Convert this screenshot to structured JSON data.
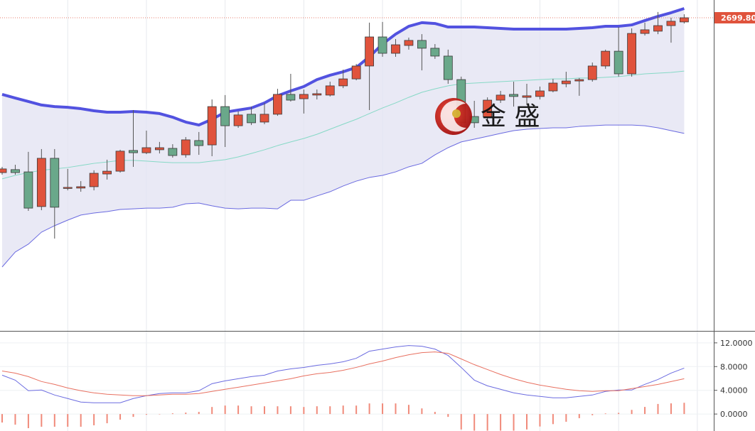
{
  "chart_data": [
    {
      "type": "candlestick",
      "categories": [
        null,
        null,
        null,
        null,
        null,
        null,
        null,
        null,
        null,
        null,
        null,
        null,
        null,
        null,
        null,
        null,
        null,
        null,
        null,
        null,
        null,
        null,
        null,
        null,
        null,
        null,
        null,
        null,
        null,
        null,
        null,
        null,
        null,
        null,
        null,
        null,
        null,
        null,
        null,
        null,
        null,
        null,
        null,
        null,
        null,
        null,
        null,
        null,
        null,
        null,
        null,
        null,
        null
      ],
      "open": [
        2610.9,
        2612.6,
        2611.3,
        2591.4,
        2619.1,
        2602.0,
        2602.0,
        2602.8,
        2610.1,
        2611.7,
        2623.6,
        2622.3,
        2624.0,
        2624.8,
        2621.1,
        2629.3,
        2626.8,
        2648.8,
        2637.8,
        2644.4,
        2639.9,
        2644.4,
        2655.8,
        2653.3,
        2655.4,
        2655.4,
        2660.7,
        2664.7,
        2672.1,
        2688.8,
        2679.4,
        2683.9,
        2686.8,
        2682.3,
        2677.8,
        2664.3,
        2643.1,
        2642.7,
        2652.5,
        2655.8,
        2654.1,
        2654.6,
        2657.8,
        2661.9,
        2663.5,
        2664.3,
        2672.1,
        2680.6,
        2667.6,
        2690.8,
        2692.1,
        2695.3,
        2697.4
      ],
      "high": [
        2614.2,
        2615.4,
        2622.8,
        2624.4,
        2624.4,
        2613.0,
        2606.0,
        2612.2,
        2618.3,
        2624.0,
        2646.8,
        2635.0,
        2628.5,
        2627.2,
        2631.3,
        2634.2,
        2652.9,
        2655.4,
        2646.0,
        2648.8,
        2650.9,
        2659.0,
        2667.6,
        2658.6,
        2658.6,
        2663.1,
        2670.0,
        2673.3,
        2697.0,
        2697.4,
        2687.6,
        2688.4,
        2690.4,
        2684.7,
        2681.5,
        2666.0,
        2652.1,
        2654.1,
        2657.8,
        2663.1,
        2661.9,
        2660.3,
        2664.7,
        2668.8,
        2665.2,
        2674.1,
        2681.5,
        2694.5,
        2693.7,
        2697.0,
        2703.1,
        2699.8,
        2701.8
      ],
      "low": [
        2609.7,
        2609.7,
        2588.9,
        2589.3,
        2573.0,
        2600.7,
        2599.9,
        2600.7,
        2606.9,
        2610.9,
        2614.2,
        2621.5,
        2621.9,
        2619.5,
        2619.5,
        2621.1,
        2620.3,
        2625.6,
        2636.6,
        2638.2,
        2638.7,
        2643.5,
        2651.7,
        2644.8,
        2652.9,
        2654.6,
        2659.4,
        2663.9,
        2646.8,
        2677.4,
        2677.4,
        2681.5,
        2669.6,
        2676.2,
        2661.9,
        2637.4,
        2636.6,
        2640.7,
        2650.9,
        2648.8,
        2649.7,
        2652.9,
        2657.0,
        2659.9,
        2655.0,
        2663.1,
        2670.5,
        2666.0,
        2666.0,
        2689.6,
        2690.4,
        2685.5,
        2696.5
      ],
      "close": [
        2613.0,
        2610.9,
        2590.5,
        2619.1,
        2591.0,
        2602.4,
        2602.8,
        2610.5,
        2611.7,
        2623.2,
        2622.3,
        2625.2,
        2625.2,
        2620.7,
        2629.7,
        2626.4,
        2648.8,
        2637.8,
        2644.0,
        2639.5,
        2644.4,
        2655.8,
        2652.5,
        2655.8,
        2656.2,
        2660.7,
        2664.7,
        2672.1,
        2688.8,
        2679.4,
        2684.3,
        2686.8,
        2682.3,
        2677.8,
        2664.3,
        2639.5,
        2639.5,
        2652.5,
        2655.4,
        2654.6,
        2655.0,
        2657.8,
        2662.3,
        2663.5,
        2664.3,
        2672.1,
        2680.6,
        2667.6,
        2690.8,
        2692.9,
        2695.3,
        2697.8,
        2699.8
      ],
      "up_color": "#e0533c",
      "down_color": "#6aa88a",
      "overlays": [
        {
          "color": "#5252e0",
          "values": [
            2655.8,
            2653.7,
            2651.7,
            2649.7,
            2648.8,
            2648.4,
            2647.6,
            2646.4,
            2645.6,
            2645.6,
            2646.0,
            2645.6,
            2644.8,
            2642.7,
            2639.9,
            2638.2,
            2641.5,
            2645.6,
            2646.8,
            2648.0,
            2650.9,
            2655.0,
            2657.8,
            2660.3,
            2664.3,
            2666.8,
            2668.8,
            2671.3,
            2677.4,
            2684.7,
            2690.4,
            2694.9,
            2697.0,
            2696.5,
            2694.5,
            2694.5,
            2694.5,
            2694.1,
            2693.7,
            2693.3,
            2693.3,
            2693.3,
            2693.3,
            2693.3,
            2693.7,
            2694.1,
            2694.9,
            2694.9,
            2695.7,
            2698.2,
            2700.6,
            2702.7,
            2705.1
          ]
        },
        {
          "color": "#86d9c6",
          "values": [
            2607.3,
            2609.3,
            2610.9,
            2612.2,
            2613.0,
            2613.8,
            2615.0,
            2616.2,
            2617.0,
            2617.9,
            2617.9,
            2617.5,
            2617.0,
            2616.6,
            2616.6,
            2616.6,
            2617.5,
            2618.3,
            2619.9,
            2621.9,
            2624.0,
            2626.4,
            2628.5,
            2630.5,
            2632.9,
            2635.8,
            2638.7,
            2641.5,
            2644.8,
            2648.0,
            2650.9,
            2654.1,
            2657.0,
            2659.0,
            2660.7,
            2661.9,
            2662.3,
            2662.7,
            2663.1,
            2663.5,
            2663.9,
            2664.3,
            2664.7,
            2664.7,
            2665.2,
            2665.2,
            2665.6,
            2666.0,
            2666.8,
            2667.6,
            2668.0,
            2668.4,
            2669.2
          ]
        },
        {
          "color": "#6a6ae0",
          "values": [
            2556.7,
            2565.3,
            2569.8,
            2576.7,
            2580.4,
            2583.6,
            2586.5,
            2587.7,
            2588.5,
            2589.7,
            2590.1,
            2590.5,
            2590.5,
            2591.0,
            2593.0,
            2593.4,
            2591.8,
            2590.5,
            2590.1,
            2590.5,
            2590.5,
            2590.1,
            2595.0,
            2595.0,
            2597.5,
            2599.9,
            2603.2,
            2606.0,
            2608.1,
            2609.3,
            2611.3,
            2614.2,
            2616.2,
            2621.1,
            2625.2,
            2628.5,
            2630.1,
            2631.7,
            2633.4,
            2635.0,
            2635.8,
            2636.2,
            2636.6,
            2636.6,
            2637.4,
            2637.8,
            2638.2,
            2638.2,
            2638.2,
            2637.8,
            2636.6,
            2635.0,
            2633.4
          ]
        }
      ],
      "band_fill": "#e4e4f2",
      "ylim": [
        2520,
        2710
      ],
      "last_price": {
        "value": 2699.8,
        "label": "2699.80"
      },
      "watermark": "金 盛"
    },
    {
      "type": "macd",
      "ylim": [
        -2.86,
        13.9
      ],
      "yticks": [
        {
          "value": 0,
          "label": "0.0000"
        },
        {
          "value": 4,
          "label": "4.0000"
        },
        {
          "value": 8,
          "label": "8.0000"
        },
        {
          "value": 12,
          "label": "12.0000"
        }
      ],
      "series": [
        {
          "type": "line",
          "color": "#6b6be0",
          "values": [
            6.55,
            5.71,
            3.93,
            4.05,
            3.21,
            2.62,
            2.02,
            1.9,
            1.9,
            1.9,
            2.62,
            3.1,
            3.45,
            3.57,
            3.57,
            3.93,
            5.12,
            5.6,
            5.95,
            6.31,
            6.55,
            7.26,
            7.62,
            7.86,
            8.21,
            8.45,
            8.81,
            9.4,
            10.6,
            10.95,
            11.31,
            11.55,
            11.43,
            10.95,
            9.88,
            7.86,
            5.71,
            4.76,
            4.17,
            3.57,
            3.21,
            2.98,
            2.74,
            2.74,
            2.98,
            3.21,
            3.81,
            4.05,
            4.05,
            5.0,
            5.83,
            6.9,
            7.74
          ]
        },
        {
          "type": "line",
          "color": "#e87060",
          "values": [
            7.26,
            6.9,
            6.31,
            5.48,
            5.0,
            4.4,
            3.93,
            3.57,
            3.33,
            3.21,
            3.1,
            3.1,
            3.21,
            3.33,
            3.33,
            3.45,
            3.81,
            4.17,
            4.52,
            4.88,
            5.24,
            5.6,
            5.95,
            6.43,
            6.79,
            7.02,
            7.38,
            7.86,
            8.45,
            8.93,
            9.52,
            10.0,
            10.36,
            10.48,
            10.24,
            9.29,
            8.33,
            7.5,
            6.67,
            5.95,
            5.36,
            4.88,
            4.52,
            4.17,
            3.93,
            3.81,
            3.93,
            3.93,
            4.29,
            4.64,
            5.0,
            5.48,
            5.95
          ]
        },
        {
          "type": "bar",
          "color": "#f08a7a",
          "values": [
            -1.43,
            -1.79,
            -2.38,
            -2.14,
            -2.14,
            -2.14,
            -2.14,
            -1.9,
            -1.55,
            -0.95,
            -0.48,
            -0.12,
            0,
            0.12,
            0.24,
            0.36,
            1.19,
            1.43,
            1.43,
            1.31,
            1.31,
            1.31,
            1.31,
            1.19,
            1.31,
            1.31,
            1.43,
            1.43,
            1.79,
            1.79,
            1.79,
            1.55,
            0.95,
            0.36,
            -0.48,
            -2.6,
            -2.8,
            -2.8,
            -2.8,
            -2.8,
            -2.6,
            -2.1,
            -1.7,
            -1.3,
            -0.7,
            -0.2,
            0.1,
            0.2,
            0.7,
            1.2,
            1.7,
            1.8,
            1.9
          ]
        }
      ]
    }
  ]
}
